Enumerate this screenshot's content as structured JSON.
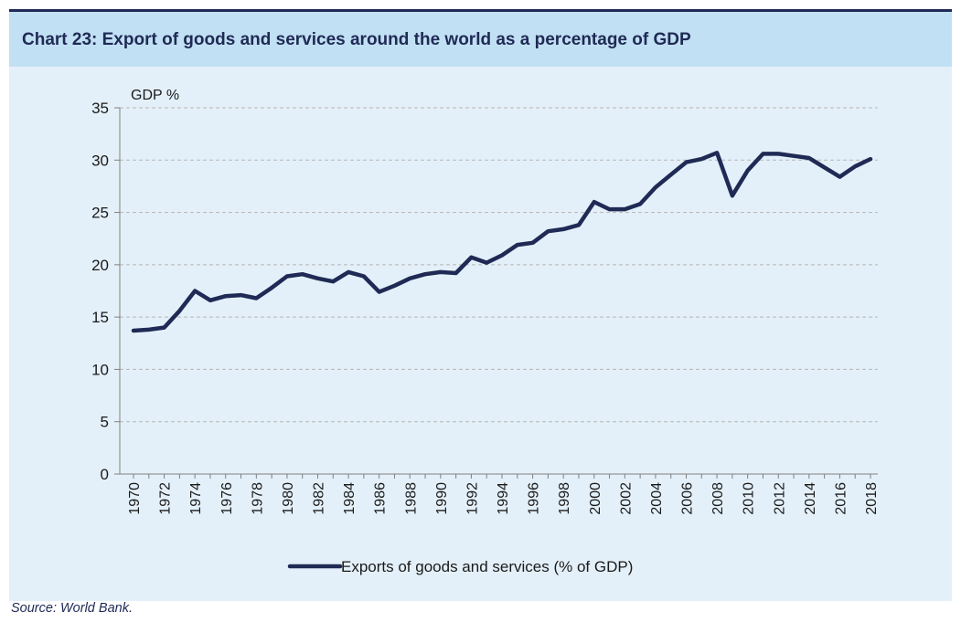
{
  "title": "Chart 23: Export of goods and services around the world as a percentage of GDP",
  "source": "Source: World Bank.",
  "colors": {
    "line": "#1f2a55",
    "background": "#e4f0f9",
    "title_band": "#c2e0f3",
    "grid": "#b5b5b5",
    "text": "#1f2a55"
  },
  "chart_data": {
    "type": "line",
    "ylabel": "GDP %",
    "xlabel": "",
    "ylim": [
      0,
      35
    ],
    "yticks": [
      0,
      5,
      10,
      15,
      20,
      25,
      30,
      35
    ],
    "xticks": [
      "1970",
      "1972",
      "1974",
      "1976",
      "1978",
      "1980",
      "1982",
      "1984",
      "1986",
      "1988",
      "1990",
      "1992",
      "1994",
      "1996",
      "1998",
      "2000",
      "2002",
      "2004",
      "2006",
      "2008",
      "2010",
      "2012",
      "2014",
      "2016",
      "2018"
    ],
    "grid": "horizontal dashed",
    "legend_position": "bottom",
    "x": [
      1970,
      1971,
      1972,
      1973,
      1974,
      1975,
      1976,
      1977,
      1978,
      1979,
      1980,
      1981,
      1982,
      1983,
      1984,
      1985,
      1986,
      1987,
      1988,
      1989,
      1990,
      1991,
      1992,
      1993,
      1994,
      1995,
      1996,
      1997,
      1998,
      1999,
      2000,
      2001,
      2002,
      2003,
      2004,
      2005,
      2006,
      2007,
      2008,
      2009,
      2010,
      2011,
      2012,
      2013,
      2014,
      2015,
      2016,
      2017,
      2018
    ],
    "series": [
      {
        "name": "Exports of goods and services (% of GDP)",
        "values": [
          13.7,
          13.8,
          14.0,
          15.6,
          17.5,
          16.6,
          17.0,
          17.1,
          16.8,
          17.8,
          18.9,
          19.1,
          18.7,
          18.4,
          19.3,
          18.9,
          17.4,
          18.0,
          18.7,
          19.1,
          19.3,
          19.2,
          20.7,
          20.2,
          20.9,
          21.9,
          22.1,
          23.2,
          23.4,
          23.8,
          26.0,
          25.3,
          25.3,
          25.8,
          27.4,
          28.6,
          29.8,
          30.1,
          30.7,
          26.6,
          29.0,
          30.6,
          30.6,
          30.4,
          30.2,
          29.3,
          28.4,
          29.4,
          30.1
        ]
      }
    ]
  }
}
